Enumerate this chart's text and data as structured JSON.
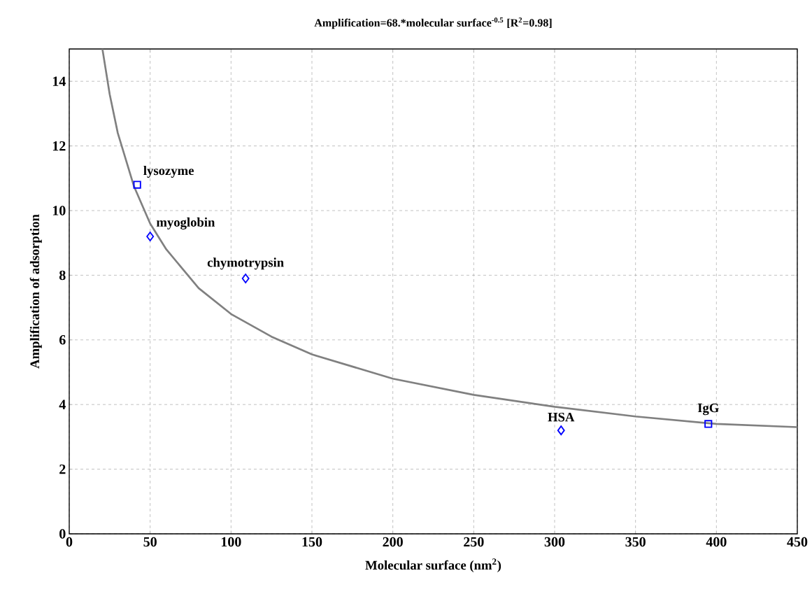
{
  "chart_data": {
    "type": "scatter",
    "title": "Amplification=68.*molecular surface$^{-0.5}$ [R$^{2}$=0.98]",
    "xlabel": "Molecular surface (nm$^{2}$)",
    "ylabel": "Amplification of adsorption",
    "xlim": [
      0,
      450
    ],
    "ylim": [
      0,
      15
    ],
    "xticks": [
      0,
      50,
      100,
      150,
      200,
      250,
      300,
      350,
      400,
      450
    ],
    "yticks": [
      0,
      2,
      4,
      6,
      8,
      10,
      12,
      14
    ],
    "grid": true,
    "series": [
      {
        "type": "line",
        "color": "#808080",
        "marker": "none",
        "line_style": "solid",
        "x": [
          20.5,
          25,
          30,
          40,
          50,
          60,
          80,
          100,
          125,
          150,
          200,
          250,
          300,
          350,
          400,
          450
        ],
        "values": [
          15,
          13.6,
          12.4,
          10.75,
          9.6,
          8.8,
          7.6,
          6.8,
          6.1,
          5.55,
          4.8,
          4.3,
          3.93,
          3.63,
          3.4,
          3.3
        ]
      },
      {
        "color": "#0000ff",
        "marker": "square",
        "x": [
          42,
          395
        ],
        "values": [
          10.8,
          3.4
        ]
      },
      {
        "color": "#0000ff",
        "marker": "diamond",
        "x": [
          50,
          109,
          304
        ],
        "values": [
          9.2,
          7.9,
          3.2
        ]
      }
    ],
    "annotations": [
      {
        "text": "lysozyme",
        "x": 42,
        "y": 10.8
      },
      {
        "text": "myoglobin",
        "x": 50,
        "y": 9.2
      },
      {
        "text": "chymotrypsin",
        "x": 109,
        "y": 7.9
      },
      {
        "text": "HSA",
        "x": 304,
        "y": 3.2
      },
      {
        "text": "IgG",
        "x": 395,
        "y": 3.4
      }
    ]
  }
}
